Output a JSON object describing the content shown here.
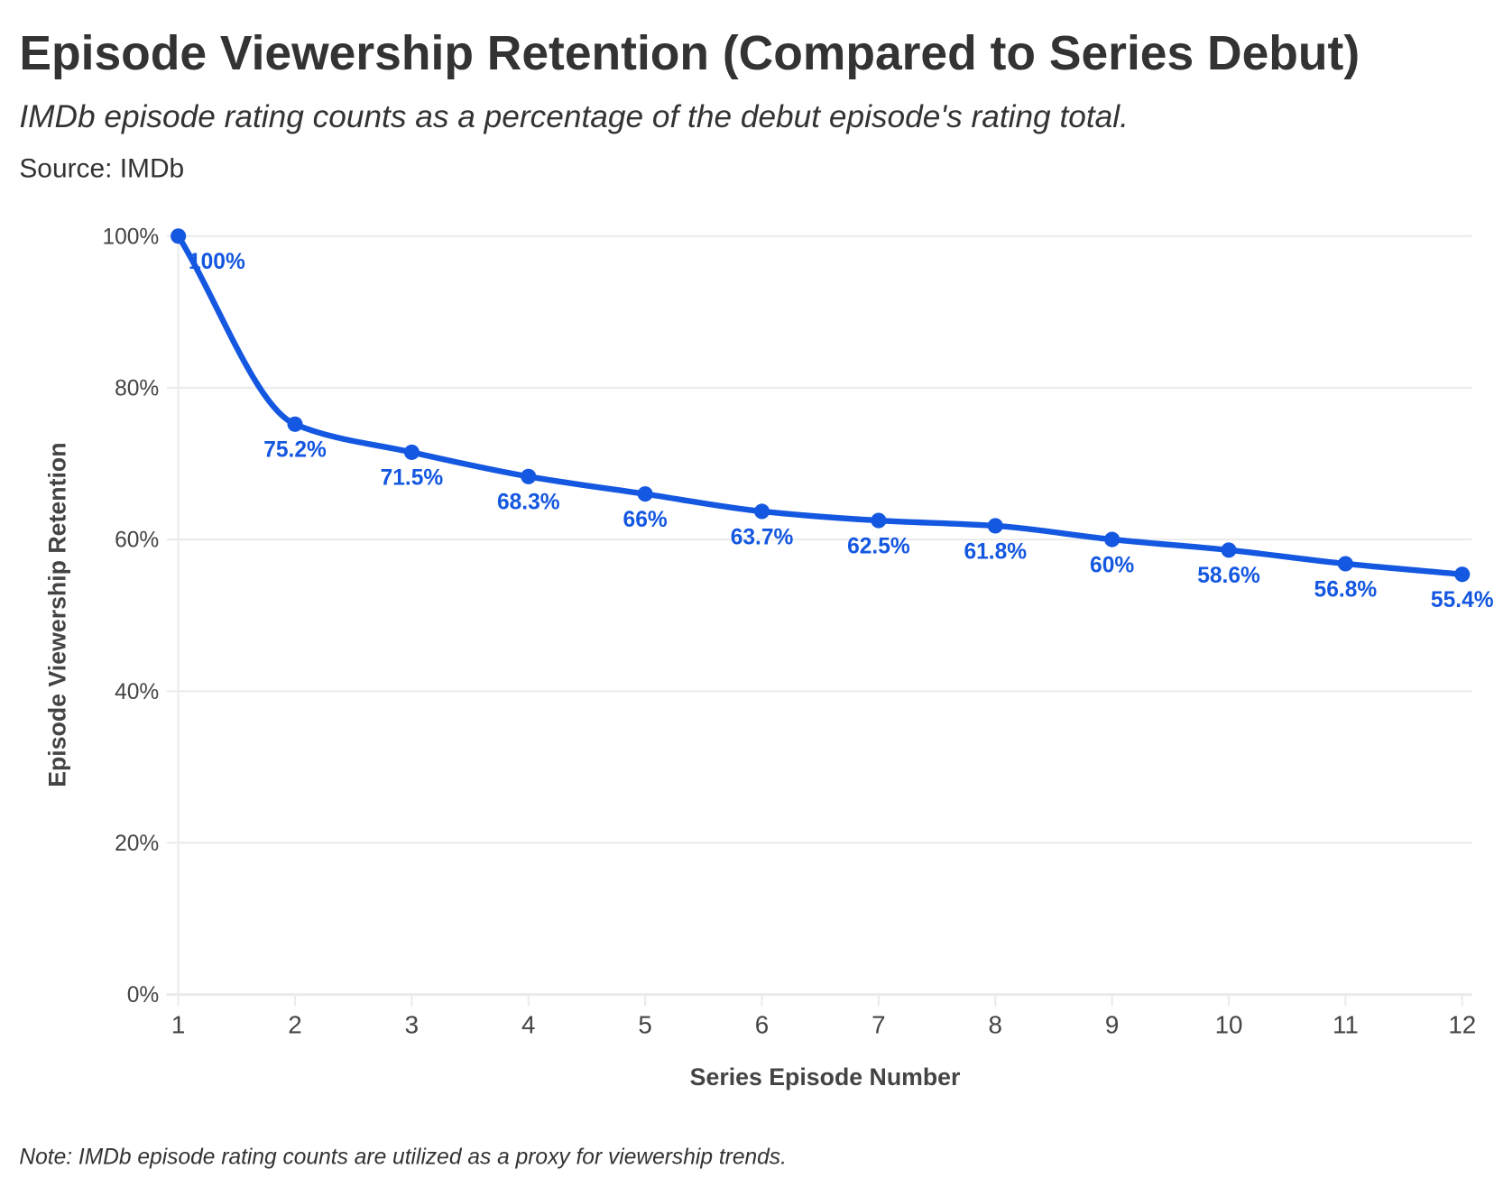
{
  "header": {
    "title": "Episode Viewership Retention (Compared to Series Debut)",
    "subtitle": "IMDb episode rating counts as a percentage of the debut episode's rating total.",
    "source": "Source: IMDb"
  },
  "footer": {
    "note": "Note: IMDb episode rating counts are utilized as a proxy for viewership trends."
  },
  "chart_data": {
    "type": "line",
    "title": "Episode Viewership Retention (Compared to Series Debut)",
    "xlabel": "Series Episode Number",
    "ylabel": "Episode Viewership Retention",
    "x": [
      1,
      2,
      3,
      4,
      5,
      6,
      7,
      8,
      9,
      10,
      11,
      12
    ],
    "series": [
      {
        "values": [
          100,
          75.2,
          71.5,
          68.3,
          66,
          63.7,
          62.5,
          61.8,
          60,
          58.6,
          56.8,
          55.4
        ],
        "labels": [
          "100%",
          "75.2%",
          "71.5%",
          "68.3%",
          "66%",
          "63.7%",
          "62.5%",
          "61.8%",
          "60%",
          "58.6%",
          "56.8%",
          "55.4%"
        ]
      }
    ],
    "xlim": [
      1,
      12
    ],
    "ylim": [
      0,
      100
    ],
    "yticks": [
      0,
      20,
      40,
      60,
      80,
      100
    ],
    "ytick_labels": [
      "0%",
      "20%",
      "40%",
      "60%",
      "80%",
      "100%"
    ],
    "xtick_labels": [
      "1",
      "2",
      "3",
      "4",
      "5",
      "6",
      "7",
      "8",
      "9",
      "10",
      "11",
      "12"
    ],
    "grid": "horizontal",
    "line_color": "#1457e0",
    "label_color": "#1457e0"
  }
}
